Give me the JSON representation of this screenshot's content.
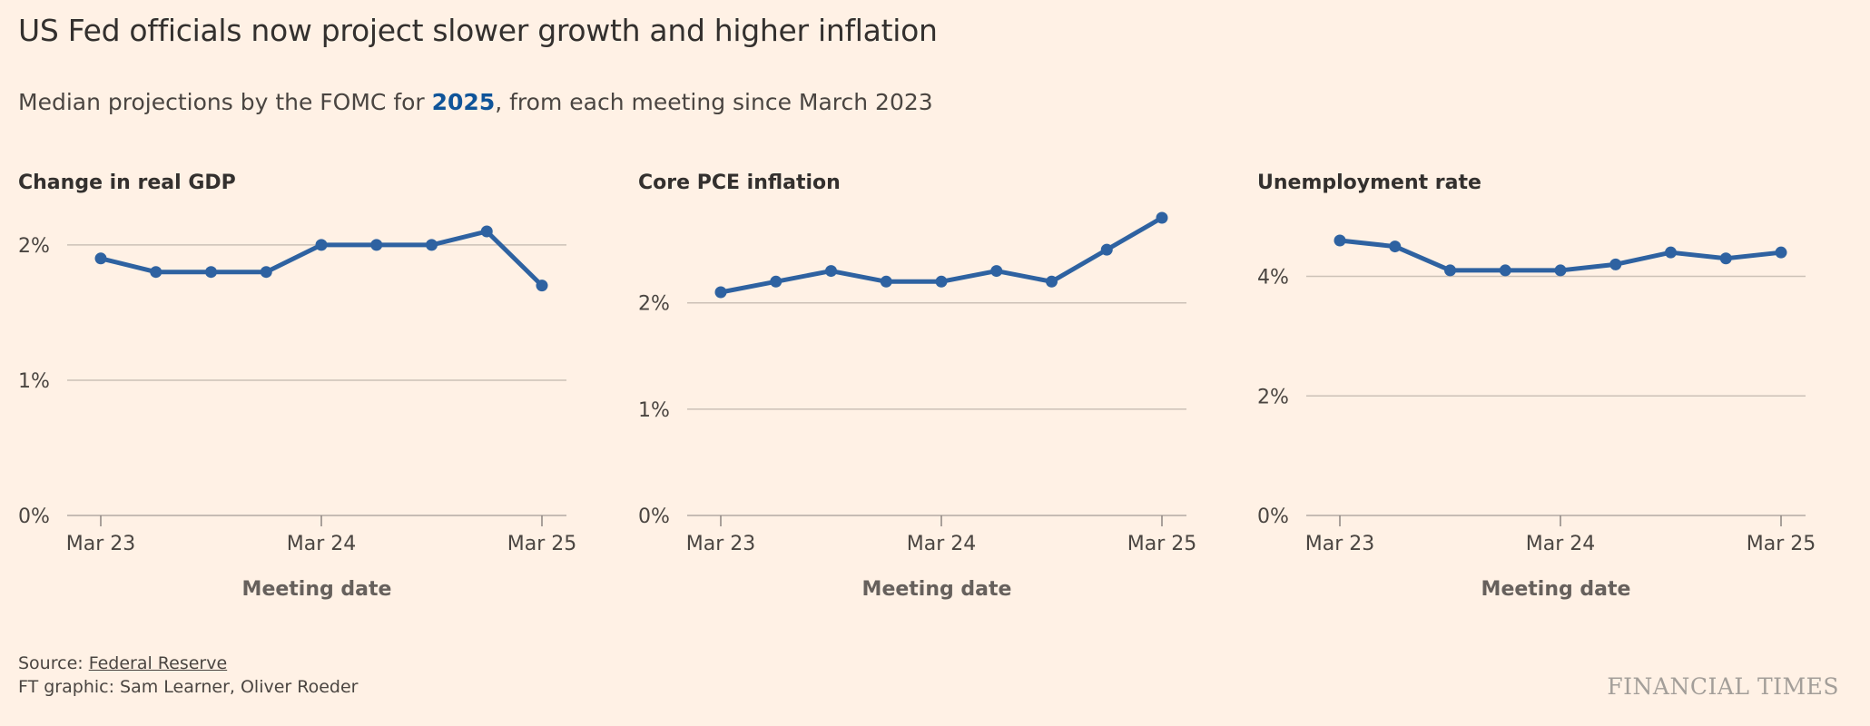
{
  "title": "US Fed officials now project slower growth and higher inflation",
  "subtitle": {
    "before": "Median projections by the FOMC for ",
    "highlight": "2025",
    "after": ", from each meeting since March 2023"
  },
  "colors": {
    "background": "#fff1e5",
    "line": "#2e62a1",
    "gridline": "#ccc1b7",
    "highlight": "#0f5499"
  },
  "chart_data": [
    {
      "type": "line",
      "title": "Change in real GDP",
      "xlabel": "Meeting date",
      "ylabel": "",
      "x": [
        "Mar 23",
        "Jun 23",
        "Sep 23",
        "Dec 23",
        "Mar 24",
        "Jun 24",
        "Sep 24",
        "Dec 24",
        "Mar 25"
      ],
      "x_ticks": [
        "Mar 23",
        "Mar 24",
        "Mar 25"
      ],
      "y_ticks": [
        "0%",
        "1%",
        "2%"
      ],
      "ylim": [
        0,
        2.1
      ],
      "series": [
        {
          "values": [
            1.9,
            1.8,
            1.8,
            1.8,
            2.0,
            2.0,
            2.0,
            2.1,
            1.7
          ]
        }
      ]
    },
    {
      "type": "line",
      "title": "Core PCE inflation",
      "xlabel": "Meeting date",
      "ylabel": "",
      "x": [
        "Mar 23",
        "Jun 23",
        "Sep 23",
        "Dec 23",
        "Mar 24",
        "Jun 24",
        "Sep 24",
        "Dec 24",
        "Mar 25"
      ],
      "x_ticks": [
        "Mar 23",
        "Mar 24",
        "Mar 25"
      ],
      "y_ticks": [
        "0%",
        "1%",
        "2%"
      ],
      "ylim": [
        0,
        2.8
      ],
      "series": [
        {
          "values": [
            2.1,
            2.2,
            2.3,
            2.2,
            2.2,
            2.3,
            2.2,
            2.5,
            2.8
          ]
        }
      ]
    },
    {
      "type": "line",
      "title": "Unemployment rate",
      "xlabel": "Meeting date",
      "ylabel": "",
      "x": [
        "Mar 23",
        "Jun 23",
        "Sep 23",
        "Dec 23",
        "Mar 24",
        "Jun 24",
        "Sep 24",
        "Dec 24",
        "Mar 25"
      ],
      "x_ticks": [
        "Mar 23",
        "Mar 24",
        "Mar 25"
      ],
      "y_ticks": [
        "0%",
        "2%",
        "4%"
      ],
      "ylim": [
        0,
        4.6
      ],
      "series": [
        {
          "values": [
            4.6,
            4.5,
            4.1,
            4.1,
            4.1,
            4.2,
            4.4,
            4.3,
            4.4
          ]
        }
      ]
    }
  ],
  "footer": {
    "source_prefix": "Source: ",
    "source_link": "Federal Reserve",
    "credit": "FT graphic: Sam Learner, Oliver Roeder",
    "brand": "FINANCIAL TIMES"
  }
}
